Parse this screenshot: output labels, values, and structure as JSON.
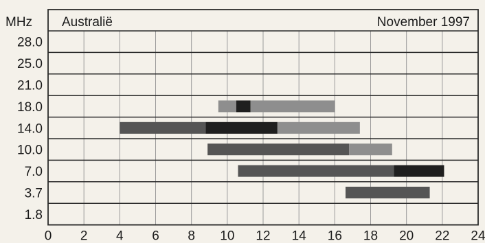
{
  "chart_data": {
    "type": "bar",
    "title": "Australië",
    "subtitle": "November 1997",
    "ylabel": "MHz",
    "xlim": [
      0,
      24
    ],
    "x_ticks": [
      "0",
      "2",
      "4",
      "6",
      "8",
      "10",
      "12",
      "14",
      "16",
      "18",
      "20",
      "22",
      "24"
    ],
    "categories": [
      "28.0",
      "25.0",
      "21.0",
      "18.0",
      "14.0",
      "10.0",
      "7.0",
      "3.7",
      "1.8"
    ],
    "grid": "vertical",
    "colors": {
      "background": "#f4f1ea",
      "light": "#8e8e8e",
      "medium": "#555555",
      "dark": "#1f1f1f"
    },
    "bars": [
      {
        "band": "18.0",
        "segments": [
          {
            "start": 9.5,
            "end": 10.5,
            "shade": "light"
          },
          {
            "start": 10.5,
            "end": 11.3,
            "shade": "dark"
          },
          {
            "start": 11.3,
            "end": 16.0,
            "shade": "light"
          }
        ]
      },
      {
        "band": "14.0",
        "segments": [
          {
            "start": 4.0,
            "end": 8.8,
            "shade": "medium"
          },
          {
            "start": 8.8,
            "end": 12.8,
            "shade": "dark"
          },
          {
            "start": 12.8,
            "end": 17.4,
            "shade": "light"
          }
        ]
      },
      {
        "band": "10.0",
        "segments": [
          {
            "start": 8.9,
            "end": 16.8,
            "shade": "medium"
          },
          {
            "start": 16.8,
            "end": 19.2,
            "shade": "light"
          }
        ]
      },
      {
        "band": "7.0",
        "segments": [
          {
            "start": 10.6,
            "end": 19.3,
            "shade": "medium"
          },
          {
            "start": 19.3,
            "end": 22.1,
            "shade": "dark"
          }
        ]
      },
      {
        "band": "3.7",
        "segments": [
          {
            "start": 16.6,
            "end": 21.3,
            "shade": "medium"
          }
        ]
      }
    ]
  }
}
